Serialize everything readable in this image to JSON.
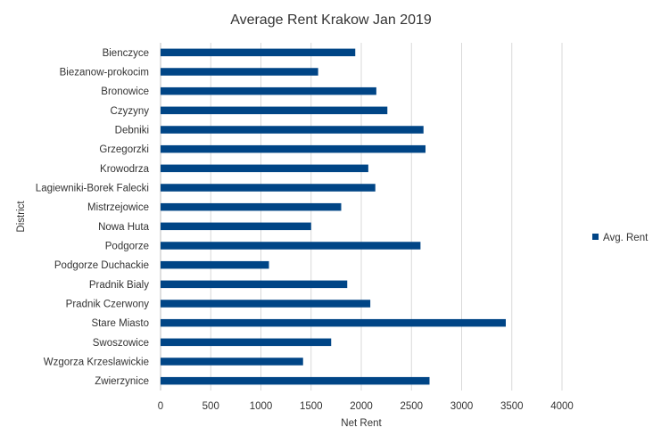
{
  "chart_data": {
    "type": "bar",
    "orientation": "horizontal",
    "title": "Average Rent Krakow Jan 2019",
    "xlabel": "Net Rent",
    "ylabel": "District",
    "xlim": [
      0,
      4000
    ],
    "x_ticks": [
      "0",
      "500",
      "1000",
      "1500",
      "2000",
      "2500",
      "3000",
      "3500",
      "4000"
    ],
    "grid": "vertical",
    "legend_position": "right",
    "categories": [
      "Bienczyce",
      "Biezanow-prokocim",
      "Bronowice",
      "Czyzyny",
      "Debniki",
      "Grzegorzki",
      "Krowodrza",
      "Lagiewniki-Borek Falecki",
      "Mistrzejowice",
      "Nowa Huta",
      "Podgorze",
      "Podgorze Duchackie",
      "Pradnik Bialy",
      "Pradnik Czerwony",
      "Stare Miasto",
      "Swoszowice",
      "Wzgorza Krzeslawickie",
      "Zwierzynice"
    ],
    "series": [
      {
        "name": "Avg. Rent",
        "color": "#004586",
        "values": [
          1940,
          1570,
          2150,
          2260,
          2620,
          2640,
          2070,
          2140,
          1800,
          1500,
          2590,
          1080,
          1860,
          2090,
          3440,
          1700,
          1420,
          2680
        ]
      }
    ]
  }
}
